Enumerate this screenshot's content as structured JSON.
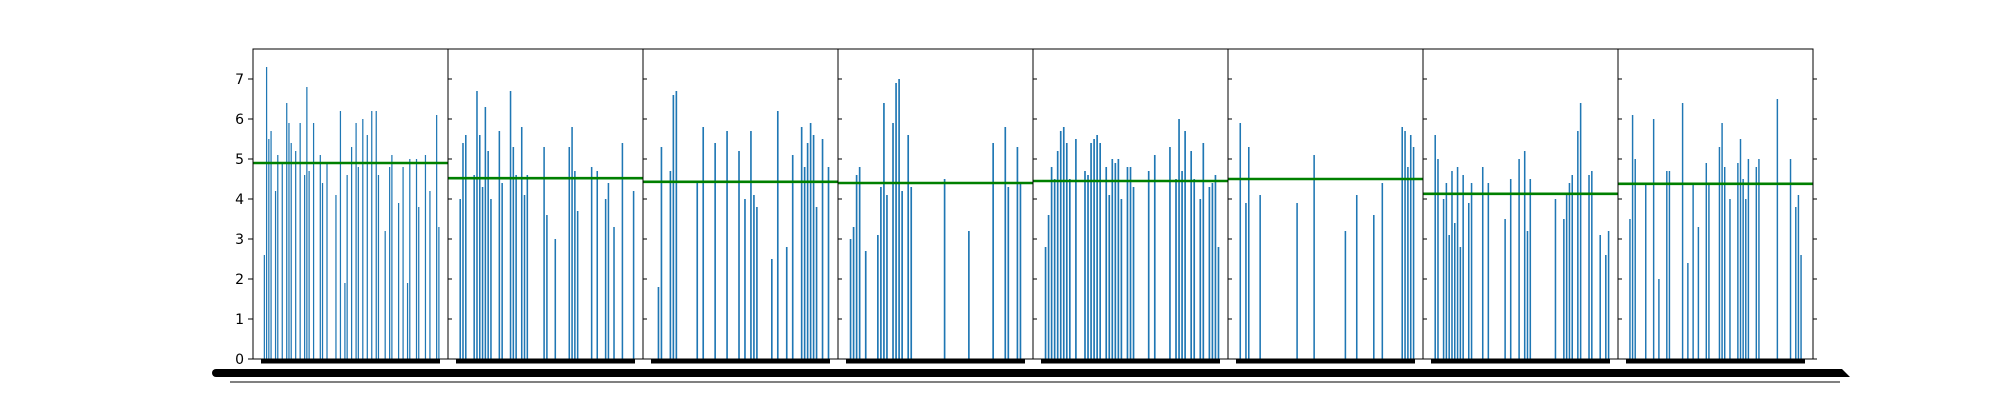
{
  "chart_data": {
    "type": "bar",
    "title": "",
    "xlabel": "",
    "ylabel": "",
    "ylim": [
      0,
      7.75
    ],
    "yticks": [
      0,
      1,
      2,
      3,
      4,
      5,
      6,
      7
    ],
    "grid": false,
    "legend": "none",
    "colors": {
      "bars": "#1f77b4",
      "mean_line": "#008000",
      "axes": "#000000"
    },
    "panels": [
      {
        "mean": 4.9,
        "values": [
          0,
          2.6,
          7.3,
          5.5,
          5.7,
          0,
          4.2,
          5.1,
          0,
          4.9,
          0,
          6.4,
          5.9,
          5.4,
          0,
          5.2,
          0,
          5.9,
          0,
          4.6,
          6.8,
          4.7,
          0,
          5.9,
          0,
          0,
          5.1,
          4.4,
          0,
          4.9,
          0,
          0,
          0,
          4.1,
          0,
          6.2,
          0,
          1.9,
          4.6,
          0,
          5.3,
          0,
          5.9,
          4.8,
          0,
          6.0,
          0,
          5.6,
          0,
          6.2,
          0,
          6.2,
          4.6,
          0,
          0,
          3.2,
          0,
          4.8,
          5.1,
          0,
          0,
          3.9,
          0,
          4.8,
          0,
          1.9,
          5.0,
          0,
          0,
          5.0,
          3.8,
          0,
          0,
          5.1,
          0,
          4.2,
          0,
          0,
          6.1,
          3.3
        ]
      },
      {
        "mean": 4.52,
        "values": [
          0,
          4.0,
          5.4,
          5.6,
          0,
          0,
          4.6,
          6.7,
          5.6,
          4.3,
          6.3,
          5.2,
          4.0,
          0,
          0,
          5.7,
          4.4,
          0,
          0,
          6.7,
          5.3,
          4.6,
          0,
          5.8,
          4.1,
          4.6,
          0,
          0,
          0,
          0,
          0,
          5.3,
          3.6,
          0,
          0,
          3.0,
          0,
          0,
          0,
          0,
          5.3,
          5.8,
          4.7,
          3.7,
          0,
          0,
          0,
          0,
          4.8,
          0,
          4.7,
          0,
          0,
          4.0,
          4.4,
          0,
          3.3,
          0,
          0,
          5.4,
          0,
          0,
          0,
          4.2
        ]
      },
      {
        "mean": 4.43,
        "values": [
          0,
          0,
          1.8,
          5.3,
          0,
          0,
          4.7,
          6.6,
          6.7,
          0,
          0,
          0,
          0,
          0,
          0,
          4.4,
          0,
          5.8,
          0,
          0,
          0,
          5.4,
          0,
          0,
          0,
          5.7,
          0,
          0,
          0,
          5.2,
          0,
          4.0,
          0,
          5.7,
          4.1,
          3.8,
          0,
          0,
          0,
          0,
          2.5,
          0,
          6.2,
          0,
          0,
          2.8,
          0,
          5.1,
          0,
          0,
          5.8,
          4.8,
          5.4,
          5.9,
          5.6,
          3.8,
          0,
          5.5,
          0,
          4.8
        ]
      },
      {
        "mean": 4.4,
        "values": [
          0,
          3.0,
          3.3,
          4.6,
          4.8,
          0,
          2.7,
          0,
          0,
          0,
          3.1,
          4.3,
          6.4,
          4.1,
          0,
          5.9,
          6.9,
          7.0,
          4.2,
          0,
          5.6,
          4.3,
          0,
          0,
          0,
          0,
          0,
          0,
          0,
          0,
          0,
          0,
          4.5,
          0,
          0,
          0,
          0,
          0,
          0,
          0,
          3.2,
          0,
          0,
          0,
          0,
          0,
          0,
          0,
          5.4,
          0,
          0,
          0,
          5.8,
          4.3,
          0,
          0,
          5.3,
          4.4,
          0
        ]
      },
      {
        "mean": 4.45,
        "values": [
          0,
          2.8,
          3.6,
          4.8,
          4.5,
          5.2,
          5.7,
          5.8,
          5.4,
          4.5,
          0,
          5.5,
          0,
          0,
          4.7,
          4.6,
          5.4,
          5.5,
          5.6,
          5.4,
          0,
          4.8,
          4.1,
          5.0,
          4.9,
          5.0,
          4.0,
          0,
          4.8,
          4.8,
          4.3,
          0,
          0,
          0,
          0,
          4.7,
          0,
          5.1,
          0,
          0,
          0,
          0,
          5.3,
          0,
          4.5,
          6.0,
          4.7,
          5.7,
          0,
          5.2,
          4.5,
          0,
          4.0,
          5.4,
          0,
          4.3,
          4.4,
          4.6,
          2.8
        ]
      },
      {
        "mean": 4.5,
        "values": [
          0,
          5.9,
          0,
          3.9,
          5.3,
          0,
          0,
          0,
          4.1,
          0,
          0,
          0,
          0,
          0,
          0,
          0,
          0,
          0,
          0,
          0,
          0,
          3.9,
          0,
          0,
          0,
          0,
          0,
          5.1,
          0,
          0,
          0,
          0,
          0,
          0,
          0,
          0,
          0,
          0,
          3.2,
          0,
          0,
          0,
          4.1,
          0,
          0,
          0,
          0,
          0,
          3.6,
          0,
          0,
          4.4,
          0,
          0,
          0,
          0,
          0,
          0,
          5.8,
          5.7,
          4.8,
          5.6,
          5.3
        ]
      },
      {
        "mean": 4.13,
        "values": [
          0,
          5.6,
          5.0,
          0,
          4.0,
          4.4,
          3.1,
          4.7,
          3.4,
          4.8,
          2.8,
          4.6,
          0,
          3.9,
          4.4,
          0,
          0,
          0,
          4.8,
          0,
          4.4,
          0,
          0,
          0,
          0,
          0,
          3.5,
          0,
          4.5,
          0,
          0,
          5.0,
          0,
          5.2,
          3.2,
          4.5,
          0,
          0,
          0,
          0,
          0,
          0,
          0,
          0,
          4.0,
          0,
          0,
          3.5,
          4.1,
          4.4,
          4.6,
          0,
          5.7,
          6.4,
          0,
          0,
          4.6,
          4.7,
          0,
          0,
          3.1,
          0,
          2.6,
          3.2
        ]
      },
      {
        "mean": 4.38,
        "values": [
          0,
          3.5,
          6.1,
          5.0,
          0,
          0,
          0,
          4.4,
          0,
          0,
          6.0,
          0,
          2.0,
          0,
          0,
          4.7,
          4.7,
          0,
          0,
          0,
          0,
          6.4,
          0,
          2.4,
          0,
          4.4,
          0,
          3.3,
          0,
          0,
          4.9,
          4.4,
          0,
          0,
          0,
          5.3,
          5.9,
          4.8,
          0,
          4.0,
          0,
          0,
          4.9,
          5.5,
          4.5,
          4.0,
          5.0,
          0,
          0,
          4.8,
          5.0,
          0,
          0,
          0,
          0,
          0,
          0,
          6.5,
          0,
          0,
          0,
          0,
          5.0,
          0,
          3.8,
          4.1,
          2.6,
          0
        ]
      }
    ]
  }
}
